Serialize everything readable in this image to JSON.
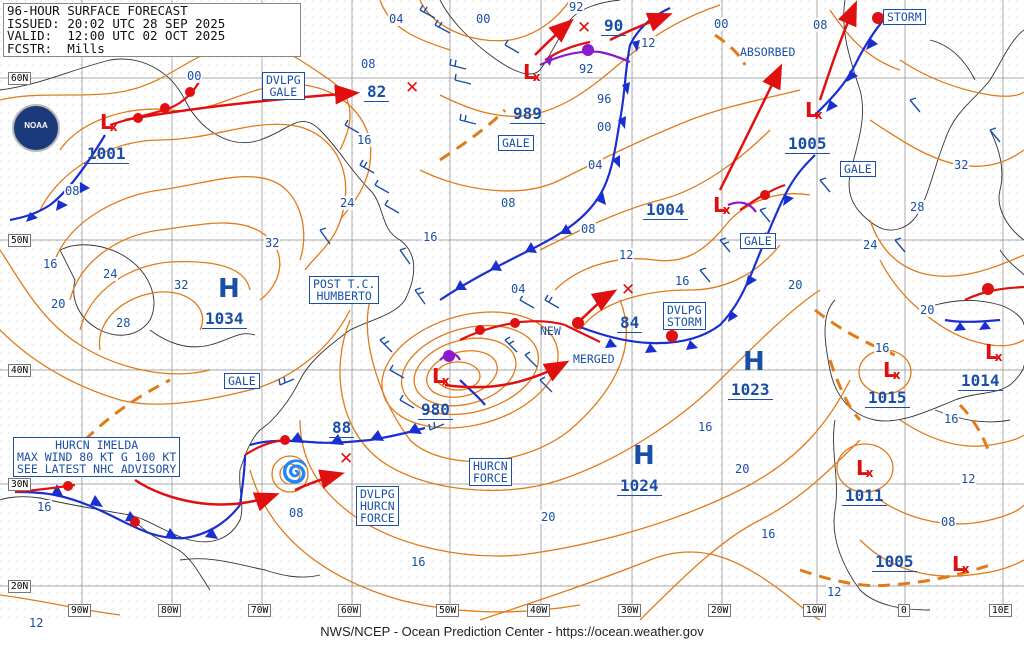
{
  "header": {
    "line1": "96-HOUR SURFACE FORECAST",
    "line2": "ISSUED: 20:02 UTC 28 SEP 2025",
    "line3": "VALID:  12:00 UTC 02 OCT 2025",
    "line4": "FCSTR:  Mills"
  },
  "logo_text": "NOAA",
  "footer": "NWS/NCEP - Ocean Prediction Center - https://ocean.weather.gov",
  "lat_labels": [
    "60N",
    "50N",
    "40N",
    "30N",
    "20N"
  ],
  "lon_labels": [
    "90W",
    "80W",
    "70W",
    "60W",
    "50W",
    "40W",
    "30W",
    "20W",
    "10W",
    "0",
    "10E"
  ],
  "highs": [
    {
      "label": "H",
      "pressure": "1034"
    },
    {
      "label": "H",
      "pressure": "1023"
    },
    {
      "label": "H",
      "pressure": "1024"
    }
  ],
  "lows": [
    {
      "pressure": "1001"
    },
    {
      "pressure": "989"
    },
    {
      "pressure": "1004"
    },
    {
      "pressure": "1005"
    },
    {
      "pressure": "980"
    },
    {
      "pressure": "1015"
    },
    {
      "pressure": "1014"
    },
    {
      "pressure": "1011"
    },
    {
      "pressure": "1005"
    }
  ],
  "future_pressures": [
    "82",
    "90",
    "92",
    "84",
    "88"
  ],
  "labels": {
    "dvlpg_gale": "DVLPG\nGALE",
    "absorbed": "ABSORBED",
    "storm_ne": "STORM",
    "gale_1": "GALE",
    "gale_2": "GALE",
    "gale_3": "GALE",
    "gale_4": "GALE",
    "post_tc": "POST T.C.\nHUMBERTO",
    "new": "NEW",
    "merged": "MERGED",
    "dvlpg_storm": "DVLPG\nSTORM",
    "hurcn_force": "HURCN\nFORCE",
    "dvlpg_hurcn_force": "DVLPG\nHURCN\nFORCE",
    "imelda": "HURCN IMELDA\nMAX WIND 80 KT G 100 KT\nSEE LATEST NHC ADVISORY"
  },
  "contour_labels": [
    "04",
    "00",
    "08",
    "16",
    "24",
    "32",
    "24",
    "28",
    "32",
    "20",
    "16",
    "00",
    "92",
    "96",
    "00",
    "04",
    "08",
    "16",
    "12",
    "04",
    "08",
    "16",
    "20",
    "24",
    "28",
    "32",
    "16",
    "20",
    "16",
    "12",
    "08",
    "16",
    "20",
    "16",
    "08",
    "16",
    "12",
    "12",
    "08",
    "20",
    "16",
    "12",
    "00",
    "08"
  ],
  "colors": {
    "isobar": "#e07b1a",
    "front_cold": "#1a2fd0",
    "front_warm": "#e01010",
    "occluded": "#8a1acc",
    "track": "#e01010",
    "text": "#1a4fa8"
  }
}
